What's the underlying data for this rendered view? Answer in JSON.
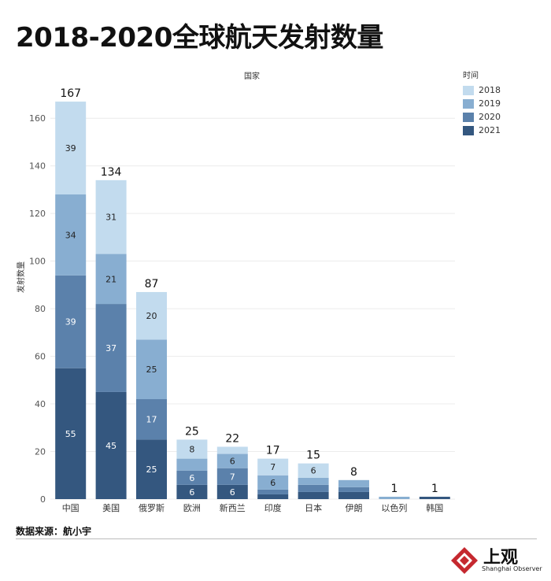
{
  "title": "2018-2020全球航天发射数量",
  "source": "数据来源：航小宇",
  "logo": {
    "cn": "上观",
    "en": "Shanghai Observer"
  },
  "chart_data": {
    "type": "bar",
    "stacked": true,
    "title": "2018-2020全球航天发射数量",
    "xlabel": "国家",
    "ylabel": "发射数量",
    "ylim": [
      0,
      170
    ],
    "yticks": [
      0,
      20,
      40,
      60,
      80,
      100,
      120,
      140,
      160
    ],
    "grid": true,
    "legend": {
      "title": "时间",
      "position": "top-right"
    },
    "categories": [
      "中国",
      "美国",
      "俄罗斯",
      "欧洲",
      "新西兰",
      "印度",
      "日本",
      "伊朗",
      "以色列",
      "韩国"
    ],
    "totals": [
      167,
      134,
      87,
      25,
      22,
      17,
      15,
      8,
      1,
      1
    ],
    "series": [
      {
        "name": "2021",
        "color": "#34577f",
        "values": [
          55,
          45,
          25,
          6,
          6,
          2,
          3,
          3,
          0,
          1
        ]
      },
      {
        "name": "2020",
        "color": "#5b81ab",
        "values": [
          39,
          37,
          17,
          6,
          7,
          2,
          3,
          2,
          0,
          0
        ]
      },
      {
        "name": "2019",
        "color": "#88aed1",
        "values": [
          34,
          21,
          25,
          5,
          6,
          6,
          3,
          3,
          1,
          0
        ]
      },
      {
        "name": "2018",
        "color": "#c2dbee",
        "values": [
          39,
          31,
          20,
          8,
          3,
          7,
          6,
          0,
          0,
          0
        ]
      }
    ],
    "segment_labels": [
      [
        "55",
        "45",
        "25",
        "6",
        "6",
        "",
        "",
        "",
        "",
        ""
      ],
      [
        "39",
        "37",
        "17",
        "6",
        "7",
        "",
        "",
        "",
        "",
        ""
      ],
      [
        "34",
        "21",
        "25",
        "",
        "6",
        "6",
        "",
        "",
        "",
        ""
      ],
      [
        "39",
        "31",
        "20",
        "8",
        "",
        "7",
        "6",
        "",
        "",
        ""
      ]
    ]
  }
}
